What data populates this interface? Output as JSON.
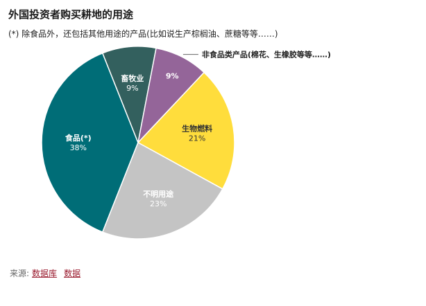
{
  "title": "外国投资者购买耕地的用途",
  "subtitle": "(*) 除食品外，还包括其他用途的产品(比如说生产棕榈油、蔗糖等等……)",
  "chart_data": {
    "type": "pie",
    "slices": [
      {
        "label": "食品(*)",
        "value": 38,
        "value_text": "38%",
        "color": "#006d77",
        "text_color": "#ffffff"
      },
      {
        "label": "畜牧业",
        "value": 9,
        "value_text": "9%",
        "color": "#33605e",
        "text_color": "#ffffff"
      },
      {
        "label": "",
        "value": 9,
        "value_text": "9%",
        "color": "#946599",
        "text_color": "#ffffff",
        "callout": "非食品类产品(棉花、生橡胶等等……)"
      },
      {
        "label": "生物燃料",
        "value": 21,
        "value_text": "21%",
        "color": "#ffdd3c",
        "text_color": "#333333"
      },
      {
        "label": "不明用途",
        "value": 23,
        "value_text": "23%",
        "color": "#c4c4c4",
        "text_color": "#ffffff"
      }
    ]
  },
  "source": {
    "label": "来源:",
    "links": [
      "数据库",
      "数据"
    ]
  }
}
